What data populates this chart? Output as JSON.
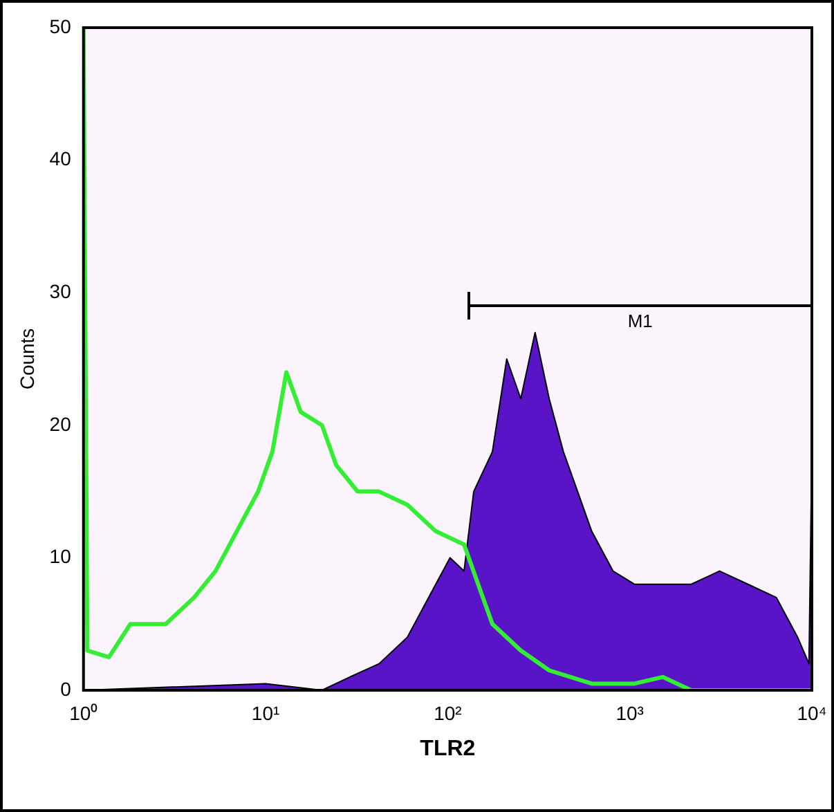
{
  "chart_data": {
    "type": "area",
    "xlabel": "TLR2",
    "ylabel": "Counts",
    "log": "x",
    "xlim": [
      1,
      10000
    ],
    "xticks": [
      {
        "value": 1,
        "label": "10⁰"
      },
      {
        "value": 10,
        "label": "10¹"
      },
      {
        "value": 100,
        "label": "10²"
      },
      {
        "value": 1000,
        "label": "10³"
      },
      {
        "value": 10000,
        "label": "10⁴"
      }
    ],
    "ylim": [
      0,
      50
    ],
    "yticks": [
      0,
      10,
      20,
      30,
      40,
      50
    ],
    "bands": [
      {
        "axis": "x",
        "from": 130,
        "to": 10000,
        "label": "M1"
      }
    ],
    "series": [
      {
        "color": "#5a14c8",
        "x": [
          1,
          10,
          20.4,
          29,
          42,
          60,
          86,
          103,
          123,
          139,
          176,
          211,
          252,
          302,
          361,
          432,
          517,
          618,
          809,
          1060,
          1518,
          2173,
          3112,
          4457,
          6383,
          8356,
          9640,
          10000
        ],
        "values": [
          0,
          0.5,
          0,
          1,
          2,
          4,
          8,
          10,
          9,
          15,
          18,
          25,
          22,
          27,
          22,
          18,
          15,
          12,
          9,
          8,
          8,
          8,
          9,
          8,
          7,
          4,
          2,
          18
        ]
      },
      {
        "type": "line",
        "color": "#33ee33",
        "x": [
          1,
          1.05,
          1.38,
          1.81,
          2.83,
          4.05,
          5.31,
          6.95,
          9.1,
          10.9,
          13,
          15.6,
          20.4,
          24.4,
          32,
          41.9,
          60,
          86,
          123,
          147,
          176,
          252,
          361,
          618,
          1060,
          1518,
          2173,
          10000
        ],
        "values": [
          50,
          3,
          2.5,
          5,
          5,
          7,
          9,
          12,
          15,
          18,
          24,
          21,
          20,
          17,
          15,
          15,
          14,
          12,
          11,
          8,
          5,
          3,
          1.5,
          0.5,
          0.5,
          1,
          0,
          0
        ]
      }
    ]
  }
}
